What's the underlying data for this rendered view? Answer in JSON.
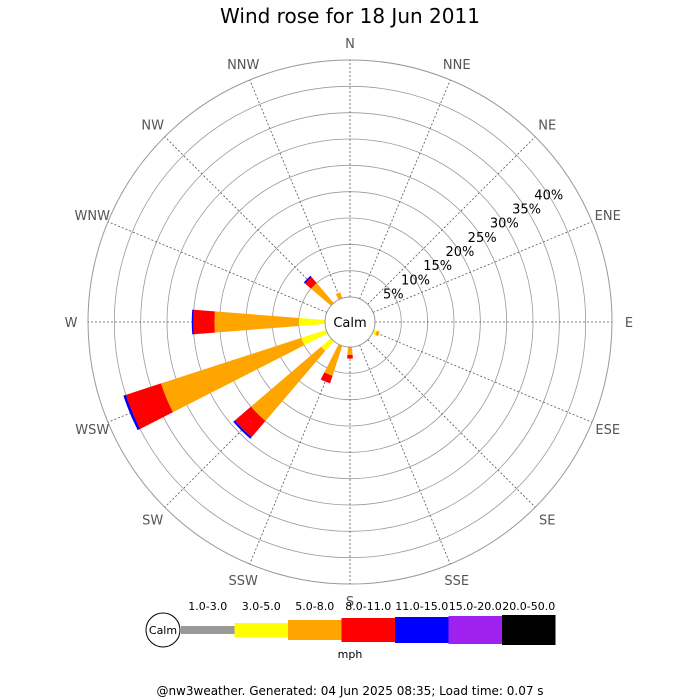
{
  "title": "Wind rose for 18 Jun 2011",
  "footer": "@nw3weather. Generated: 04 Jun 2025 08:35; Load time: 0.07 s",
  "chart_data": {
    "type": "wind-rose",
    "directions": [
      "N",
      "NNE",
      "NE",
      "ENE",
      "E",
      "ESE",
      "SE",
      "SSE",
      "S",
      "SSW",
      "SW",
      "WSW",
      "W",
      "WNW",
      "NW",
      "NNW"
    ],
    "radial_ticks": [
      "5%",
      "10%",
      "15%",
      "20%",
      "25%",
      "30%",
      "35%",
      "40%"
    ],
    "radial_values": [
      5,
      10,
      15,
      20,
      25,
      30,
      35,
      40
    ],
    "rmax": 45,
    "calm_label": "Calm",
    "units_label": "mph",
    "speed_bins": [
      {
        "label": "1.0-3.0",
        "color": "#999999"
      },
      {
        "label": "3.0-5.0",
        "color": "#ffff00"
      },
      {
        "label": "5.0-8.0",
        "color": "#ffa500"
      },
      {
        "label": "8.0-11.0",
        "color": "#ff0000"
      },
      {
        "label": "11.0-15.0",
        "color": "#0000ff"
      },
      {
        "label": "15.0-20.0",
        "color": "#a020f0"
      },
      {
        "label": "20.0-50.0",
        "color": "#000000"
      }
    ],
    "series": [
      {
        "direction": "N",
        "cumulative": [
          0,
          0,
          0,
          0,
          0,
          0,
          0
        ]
      },
      {
        "direction": "NNE",
        "cumulative": [
          0,
          0,
          0,
          0,
          0,
          0,
          0
        ]
      },
      {
        "direction": "NE",
        "cumulative": [
          0,
          0,
          0,
          0,
          0,
          0,
          0
        ]
      },
      {
        "direction": "ENE",
        "cumulative": [
          0,
          0,
          0,
          0,
          0,
          0,
          0
        ]
      },
      {
        "direction": "E",
        "cumulative": [
          0,
          0,
          0,
          0,
          0,
          0,
          0
        ]
      },
      {
        "direction": "ESE",
        "cumulative": [
          0,
          0.6,
          1.2,
          1.2,
          1.2,
          1.2,
          1.2
        ]
      },
      {
        "direction": "SE",
        "cumulative": [
          0,
          0,
          0,
          0,
          0,
          0,
          0
        ]
      },
      {
        "direction": "SSE",
        "cumulative": [
          0,
          0,
          0,
          0,
          0,
          0,
          0
        ]
      },
      {
        "direction": "S",
        "cumulative": [
          0,
          0,
          1.5,
          2.2,
          2.2,
          2.2,
          2.2
        ]
      },
      {
        "direction": "SSW",
        "cumulative": [
          0,
          0,
          6.0,
          7.5,
          7.5,
          7.5,
          7.5
        ]
      },
      {
        "direction": "SW",
        "cumulative": [
          0,
          2.5,
          20.0,
          24.0,
          24.4,
          24.4,
          24.4
        ]
      },
      {
        "direction": "WSW",
        "cumulative": [
          0,
          5.0,
          33.0,
          40.0,
          40.5,
          40.5,
          40.5
        ]
      },
      {
        "direction": "W",
        "cumulative": [
          0,
          5.0,
          21.0,
          25.0,
          25.3,
          25.3,
          25.3
        ]
      },
      {
        "direction": "WNW",
        "cumulative": [
          0,
          0,
          0,
          0,
          0,
          0,
          0
        ]
      },
      {
        "direction": "NW",
        "cumulative": [
          0,
          0,
          5.0,
          6.5,
          6.8,
          6.8,
          6.8
        ]
      },
      {
        "direction": "NNW",
        "cumulative": [
          0,
          0,
          1.2,
          1.2,
          1.2,
          1.2,
          1.2
        ]
      }
    ]
  }
}
